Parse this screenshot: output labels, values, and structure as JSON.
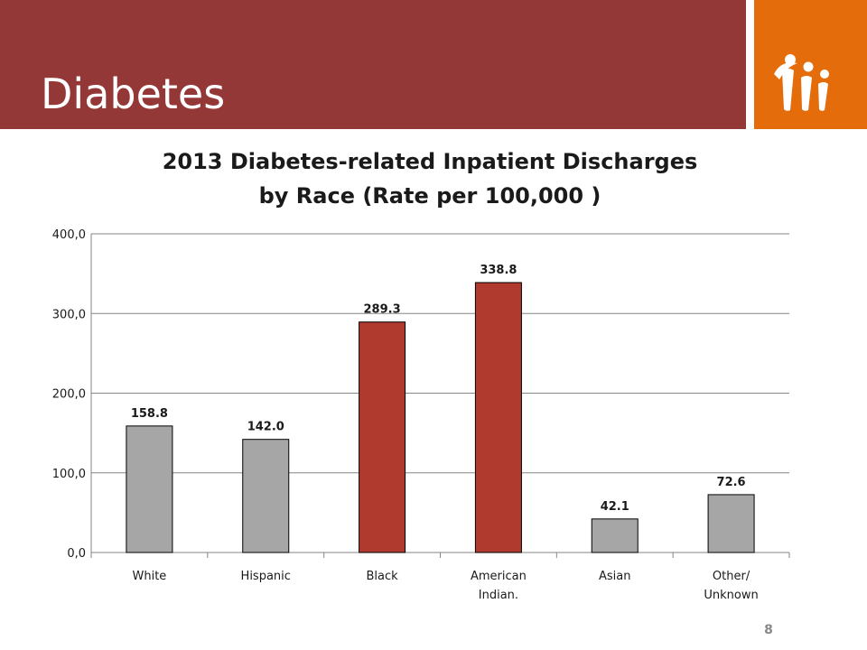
{
  "slide": {
    "title": "Diabetes",
    "page_number": "8",
    "header_color": "#943737",
    "logo_color": "#e46c0a"
  },
  "chart_data": {
    "type": "bar",
    "title_lines": [
      "2013 Diabetes-related Inpatient Discharges",
      "by Race (Rate per 100,000 )"
    ],
    "categories": [
      [
        "White"
      ],
      [
        "Hispanic"
      ],
      [
        "Black"
      ],
      [
        "American",
        "Indian."
      ],
      [
        "Asian"
      ],
      [
        "Other/",
        "Unknown"
      ]
    ],
    "values": [
      158.8,
      142.0,
      289.3,
      338.8,
      42.1,
      72.6
    ],
    "value_labels": [
      "158.8",
      "142.0",
      "289.3",
      "338.8",
      "42.1",
      "72.6"
    ],
    "bar_colors": [
      "#a6a6a6",
      "#a6a6a6",
      "#b03a2e",
      "#b03a2e",
      "#a6a6a6",
      "#a6a6a6"
    ],
    "y_ticks": [
      0,
      100,
      200,
      300,
      400
    ],
    "y_tick_labels": [
      "0,0",
      "100,0",
      "200,0",
      "300,0",
      "400,0"
    ],
    "ylim": [
      0,
      400
    ],
    "grid": true,
    "xlabel": "",
    "ylabel": ""
  }
}
